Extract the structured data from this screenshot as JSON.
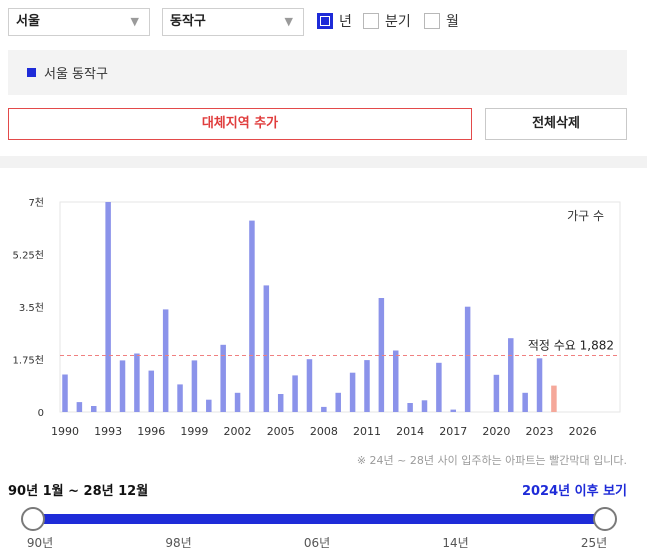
{
  "filters": {
    "city": "서울",
    "district": "동작구",
    "period_options": [
      {
        "label": "년",
        "checked": true
      },
      {
        "label": "분기",
        "checked": false
      },
      {
        "label": "월",
        "checked": false
      }
    ]
  },
  "region": {
    "label": "서울 동작구",
    "color": "#1e2bd8"
  },
  "buttons": {
    "add_region": "대체지역 추가",
    "delete_all": "전체삭제"
  },
  "chart_data": {
    "type": "bar",
    "legend_label": "가구 수",
    "y_ticks": [
      "7천",
      "5.25천",
      "3.5천",
      "1.75천",
      "0"
    ],
    "ylim": [
      0,
      7000
    ],
    "x_tick_labels": [
      "1990",
      "1993",
      "1996",
      "1999",
      "2002",
      "2005",
      "2008",
      "2011",
      "2014",
      "2017",
      "2020",
      "2023",
      "2026"
    ],
    "x": [
      1990,
      1991,
      1992,
      1993,
      1994,
      1995,
      1996,
      1997,
      1998,
      1999,
      2000,
      2001,
      2002,
      2003,
      2004,
      2005,
      2006,
      2007,
      2008,
      2009,
      2010,
      2011,
      2012,
      2013,
      2014,
      2015,
      2016,
      2017,
      2018,
      2019,
      2020,
      2021,
      2022,
      2023,
      2024
    ],
    "values": [
      1250,
      330,
      200,
      7000,
      1720,
      1950,
      1380,
      3420,
      920,
      1720,
      410,
      2240,
      640,
      6380,
      4220,
      600,
      1220,
      1760,
      170,
      640,
      1310,
      1730,
      3800,
      2050,
      300,
      390,
      1640,
      80,
      3510,
      0,
      1240,
      2460,
      640,
      1790,
      880
    ],
    "reference": {
      "label": "적정 수요 1,882",
      "value": 1882,
      "color": "#f08080"
    },
    "bar_color": "#8b93ea",
    "future_bar_color": "#f5a89a",
    "future_from": 2024
  },
  "note": "※ 24년 ~ 28년 사이 입주하는 아파트는 빨간막대 입니다.",
  "range": {
    "label": "90년 1월 ~ 28년 12월",
    "future_link": "2024년 이후 보기"
  },
  "slider": {
    "ticks": [
      "90년",
      "98년",
      "06년",
      "14년",
      "25년"
    ],
    "start": 0,
    "end": 1
  }
}
